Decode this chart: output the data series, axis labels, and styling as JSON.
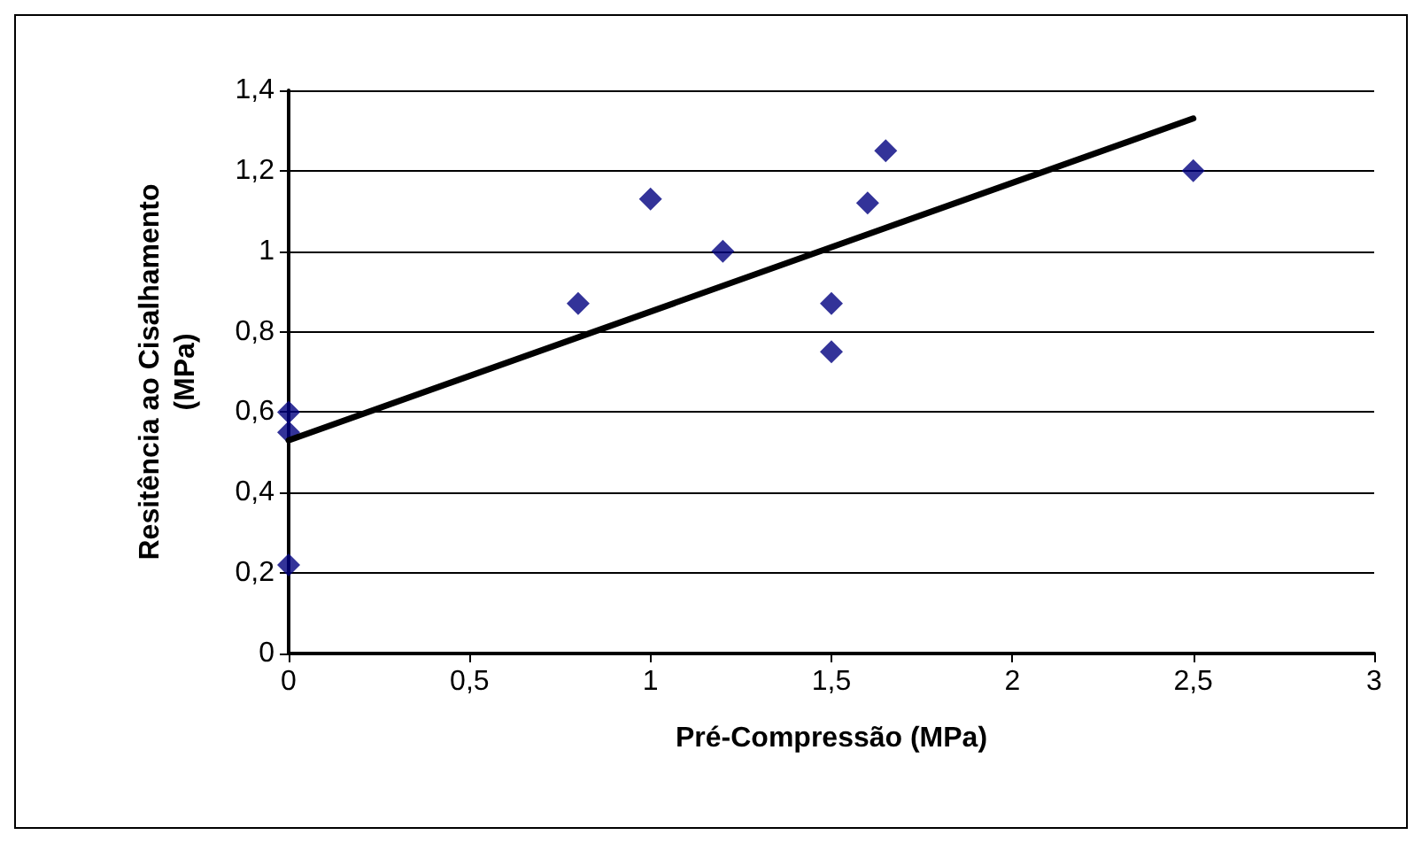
{
  "chart_data": {
    "type": "scatter",
    "xlabel": "Pré-Compressão (MPa)",
    "ylabel": "Resitência ao Cisalhamento\n(MPa)",
    "x": [
      0,
      0,
      0,
      0.8,
      1,
      1.2,
      1.5,
      1.5,
      1.6,
      1.65,
      2.5
    ],
    "series": [
      {
        "color": "#000080",
        "values": [
          0.6,
          0.55,
          0.22,
          0.87,
          1.13,
          1.0,
          0.87,
          0.75,
          1.12,
          1.25,
          1.2
        ],
        "marker": "diamond"
      },
      {
        "type": "line",
        "color": "#000000",
        "x": [
          0,
          2.5
        ],
        "values": [
          0.53,
          1.33
        ],
        "marker": "none",
        "line_style": "solid"
      }
    ],
    "xlim": [
      0,
      3
    ],
    "xticks": [
      0,
      {
        "value": 0.5,
        "label": "0,5"
      },
      1,
      {
        "value": 1.5,
        "label": "1,5"
      },
      2,
      {
        "value": 2.5,
        "label": "2,5"
      },
      3
    ],
    "ylim": [
      0,
      1.4
    ],
    "yticks": [
      0,
      {
        "value": 0.2,
        "label": "0,2"
      },
      {
        "value": 0.4,
        "label": "0,4"
      },
      {
        "value": 0.6,
        "label": "0,6"
      },
      {
        "value": 0.8,
        "label": "0,8"
      },
      1,
      {
        "value": 1.2,
        "label": "1,2"
      },
      {
        "value": 1.4,
        "label": "1,4"
      }
    ],
    "grid": "y"
  }
}
